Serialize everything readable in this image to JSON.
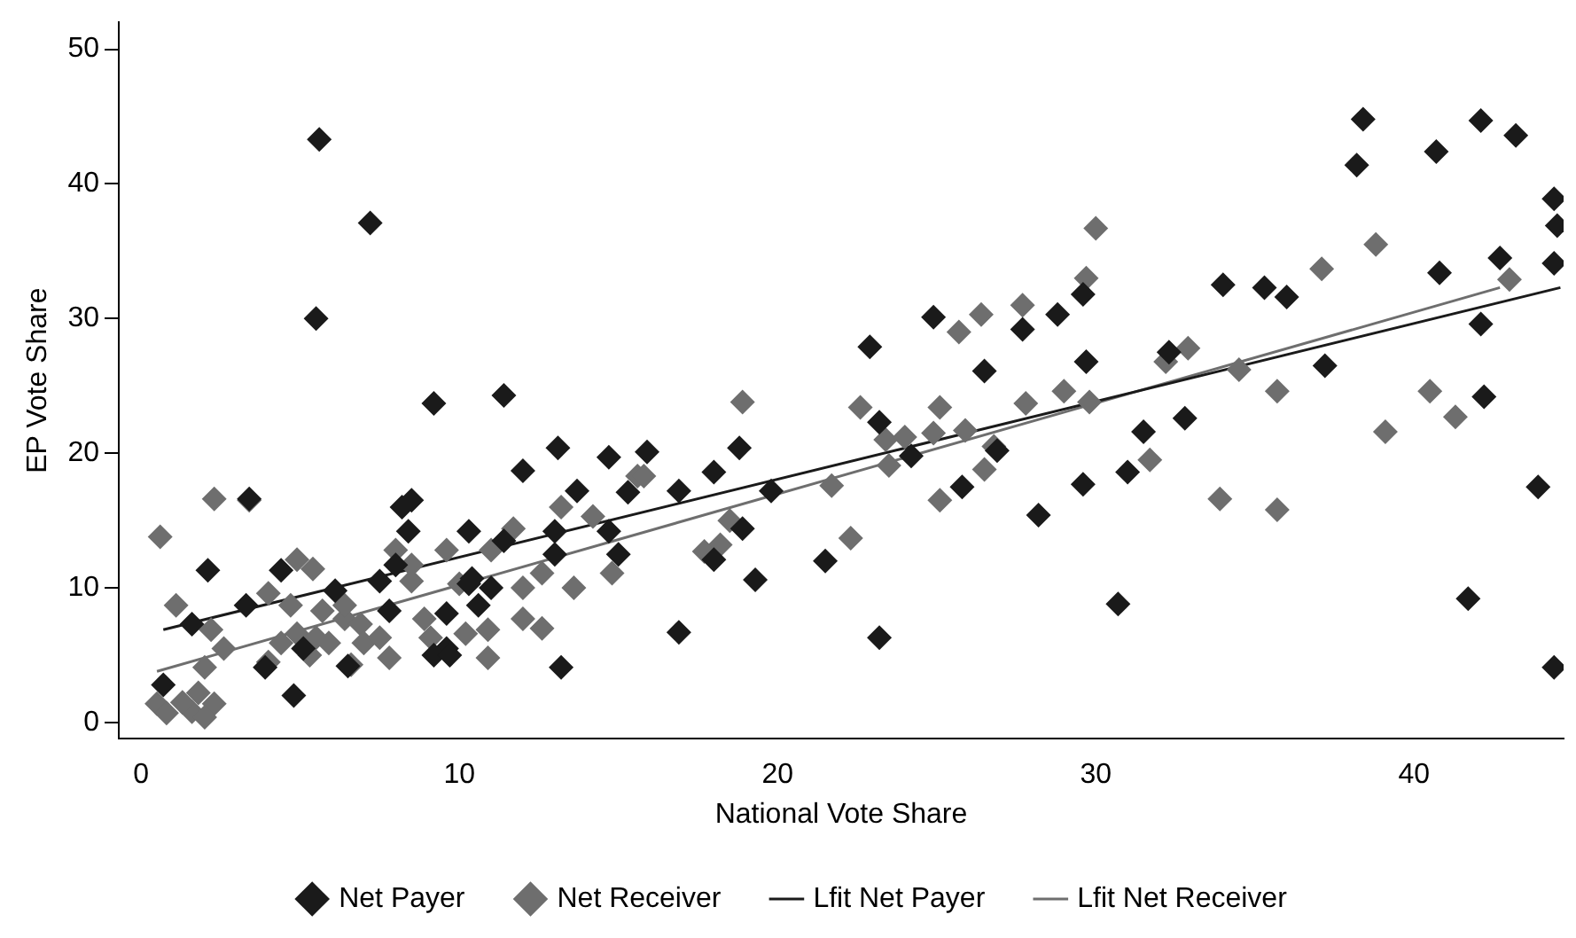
{
  "chart_data": {
    "type": "scatter",
    "xlabel": "National Vote Share",
    "ylabel": "EP Vote Share",
    "xlim": [
      -0.7,
      44.7
    ],
    "ylim": [
      -1.2,
      52
    ],
    "xticks": [
      0,
      10,
      20,
      30,
      40
    ],
    "yticks": [
      0,
      10,
      20,
      30,
      40,
      50
    ],
    "grid": false,
    "legend": "bottom",
    "marker": "diamond",
    "series": [
      {
        "name": "Net Payer",
        "color": "#1a1a1a",
        "x": [
          5.6,
          7.2,
          5.5,
          9.2,
          11.4,
          0.7,
          4.8,
          2.1,
          3.4,
          8.2,
          8.5,
          9.6,
          13.2,
          8.0,
          6.1,
          4.4,
          3.3,
          1.6,
          5.1,
          6.5,
          7.5,
          9.6,
          10.3,
          10.6,
          11.0,
          11.4,
          12.0,
          13.1,
          13.0,
          13.7,
          14.7,
          15.3,
          15.9,
          14.7,
          15.0,
          13.0,
          8.4,
          10.3,
          10.4,
          7.8,
          3.9,
          9.2,
          9.7,
          16.9,
          16.9,
          18.0,
          18.8,
          19.3,
          19.8,
          21.5,
          18.9,
          18.0,
          22.9,
          24.9,
          28.8,
          27.7,
          29.6,
          26.5,
          29.7,
          23.2,
          24.2,
          26.9,
          25.8,
          28.2,
          29.6,
          23.2,
          38.4,
          42.1,
          43.2,
          38.2,
          40.7,
          44.4,
          44.5,
          44.4,
          42.7,
          40.8,
          34.0,
          35.3,
          36.0,
          42.1,
          37.2,
          32.8,
          31.5,
          31.0,
          42.2,
          32.3,
          43.9,
          30.7,
          41.7,
          44.4
        ],
        "values": [
          43.3,
          37.1,
          30.0,
          23.7,
          24.3,
          2.8,
          2.0,
          11.3,
          16.6,
          16.0,
          16.5,
          5.5,
          4.1,
          11.7,
          9.8,
          11.3,
          8.7,
          7.3,
          5.5,
          4.2,
          10.5,
          8.1,
          10.3,
          8.7,
          10.0,
          13.5,
          18.7,
          20.4,
          14.2,
          17.2,
          19.7,
          17.1,
          20.1,
          14.2,
          12.5,
          12.5,
          14.2,
          14.2,
          10.7,
          8.3,
          4.1,
          5.0,
          5.0,
          6.7,
          17.2,
          18.6,
          20.4,
          10.6,
          17.2,
          12.0,
          14.4,
          12.1,
          27.9,
          30.1,
          30.3,
          29.2,
          31.8,
          26.1,
          26.8,
          22.3,
          19.8,
          20.2,
          17.5,
          15.4,
          17.7,
          6.3,
          44.8,
          44.7,
          43.6,
          41.4,
          42.4,
          38.9,
          36.9,
          34.1,
          34.5,
          33.4,
          32.5,
          32.3,
          31.6,
          29.6,
          26.5,
          22.6,
          21.6,
          18.6,
          24.2,
          27.5,
          17.5,
          8.8,
          9.2,
          4.1
        ]
      },
      {
        "name": "Net Receiver",
        "color": "#6e6e6e",
        "x": [
          2.3,
          3.4,
          0.6,
          1.1,
          13.2,
          15.6,
          14.2,
          11.7,
          8.0,
          9.6,
          11.0,
          8.5,
          4.9,
          5.4,
          12.6,
          14.8,
          13.6,
          12.0,
          10.0,
          8.5,
          4.0,
          4.7,
          5.7,
          6.4,
          6.9,
          6.4,
          2.2,
          2.6,
          4.4,
          4.9,
          5.5,
          5.9,
          5.3,
          7.0,
          7.5,
          8.9,
          9.1,
          10.2,
          10.9,
          12.0,
          12.6,
          10.9,
          4.0,
          2.0,
          1.8,
          2.3,
          0.5,
          1.6,
          0.8,
          2.0,
          1.3,
          6.6,
          7.8,
          26.4,
          25.7,
          27.7,
          18.9,
          22.6,
          25.1,
          29.0,
          27.8,
          29.8,
          23.4,
          24.0,
          24.9,
          25.9,
          26.8,
          23.5,
          26.5,
          21.7,
          25.1,
          22.3,
          18.5,
          18.2,
          17.7,
          15.8,
          30.0,
          38.8,
          37.1,
          43.0,
          29.7,
          32.9,
          32.2,
          34.5,
          35.7,
          40.5,
          41.3,
          39.1,
          31.7,
          33.9,
          35.7
        ],
        "values": [
          16.6,
          16.5,
          13.8,
          8.7,
          16.0,
          18.3,
          15.3,
          14.4,
          12.8,
          12.8,
          12.8,
          11.7,
          12.1,
          11.4,
          11.1,
          11.1,
          10.0,
          10.0,
          10.3,
          10.5,
          9.6,
          8.7,
          8.3,
          7.7,
          7.3,
          8.7,
          6.9,
          5.5,
          5.9,
          6.6,
          6.3,
          5.9,
          5.0,
          5.9,
          6.3,
          7.7,
          6.3,
          6.6,
          6.9,
          7.7,
          7.0,
          4.8,
          4.5,
          4.1,
          2.2,
          1.4,
          1.4,
          0.8,
          0.7,
          0.4,
          1.5,
          4.3,
          4.8,
          30.3,
          29.0,
          31.0,
          23.8,
          23.4,
          23.4,
          24.6,
          23.7,
          23.8,
          21.0,
          21.2,
          21.5,
          21.7,
          20.5,
          19.1,
          18.8,
          17.6,
          16.5,
          13.7,
          15.0,
          13.2,
          12.7,
          18.3,
          36.7,
          35.5,
          33.7,
          32.9,
          33.0,
          27.8,
          26.8,
          26.2,
          24.6,
          24.6,
          22.7,
          21.6,
          19.5,
          16.6,
          15.8
        ]
      },
      {
        "name": "Lfit Net Payer",
        "type": "line",
        "marker": "none",
        "color": "#1a1a1a",
        "x": [
          0.7,
          44.6
        ],
        "values": [
          6.9,
          32.3
        ]
      },
      {
        "name": "Lfit Net Receiver",
        "type": "line",
        "marker": "none",
        "color": "#6e6e6e",
        "x": [
          0.5,
          42.7
        ],
        "values": [
          3.8,
          32.3
        ]
      }
    ]
  }
}
